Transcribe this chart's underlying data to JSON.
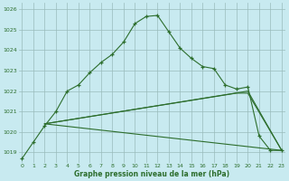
{
  "xlabel": "Graphe pression niveau de la mer (hPa)",
  "background_color": "#c8eaf0",
  "grid_color": "#99bbbb",
  "line_color": "#2d6e2d",
  "ylim": [
    1018.5,
    1026.3
  ],
  "xlim": [
    -0.3,
    23.3
  ],
  "yticks": [
    1019,
    1020,
    1021,
    1022,
    1023,
    1024,
    1025,
    1026
  ],
  "xticks": [
    0,
    1,
    2,
    3,
    4,
    5,
    6,
    7,
    8,
    9,
    10,
    11,
    12,
    13,
    14,
    15,
    16,
    17,
    18,
    19,
    20,
    21,
    22,
    23
  ],
  "line1_x": [
    0,
    1,
    2,
    3,
    4,
    5,
    6,
    7,
    8,
    9,
    10,
    11,
    12,
    13,
    14,
    15,
    16,
    17,
    18,
    19,
    20,
    21,
    22,
    23
  ],
  "line1_y": [
    1018.7,
    1019.5,
    1020.3,
    1021.0,
    1022.0,
    1022.3,
    1022.9,
    1023.4,
    1023.8,
    1024.4,
    1025.3,
    1025.65,
    1025.7,
    1024.9,
    1024.1,
    1023.6,
    1023.2,
    1023.1,
    1022.3,
    1022.1,
    1022.2,
    1019.8,
    1019.1,
    1019.1
  ],
  "line2_x": [
    2,
    23
  ],
  "line2_y": [
    1020.4,
    1019.1
  ],
  "line3_x": [
    2,
    20,
    23
  ],
  "line3_y": [
    1020.4,
    1022.0,
    1019.1
  ],
  "line4_x": [
    2,
    19,
    20,
    23
  ],
  "line4_y": [
    1020.4,
    1021.9,
    1021.9,
    1019.1
  ]
}
